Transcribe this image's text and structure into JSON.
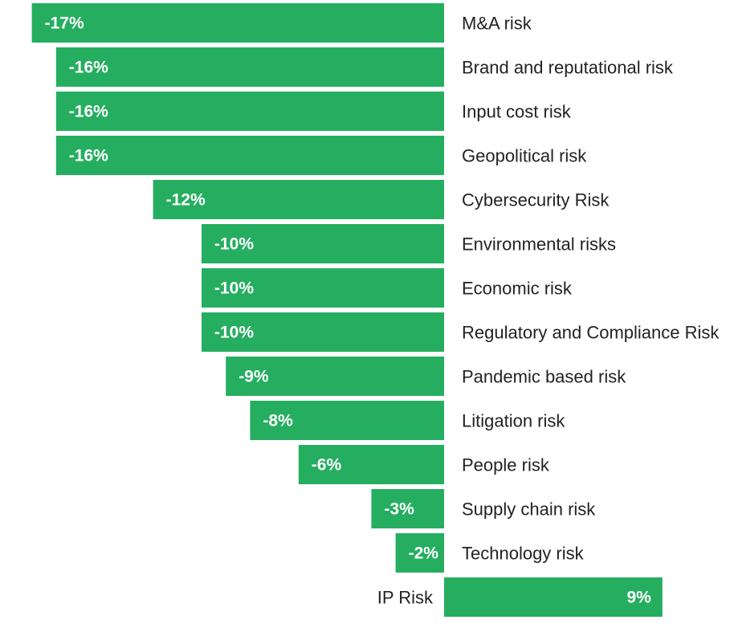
{
  "chart_data": {
    "type": "bar",
    "orientation": "horizontal",
    "title": "",
    "xlabel": "",
    "ylabel": "",
    "unit": "%",
    "categories": [
      "M&A risk",
      "Brand and reputational risk",
      "Input cost risk",
      "Geopolitical risk",
      "Cybersecurity Risk",
      "Environmental risks",
      "Economic risk",
      "Regulatory and Compliance Risk",
      "Pandemic based risk",
      "Litigation risk",
      "People risk",
      "Supply chain risk",
      "Technology risk",
      "IP Risk"
    ],
    "values": [
      -17,
      -16,
      -16,
      -16,
      -12,
      -10,
      -10,
      -10,
      -9,
      -8,
      -6,
      -3,
      -2,
      9
    ],
    "value_labels": [
      "-17%",
      "-16%",
      "-16%",
      "-16%",
      "-12%",
      "-10%",
      "-10%",
      "-10%",
      "-9%",
      "-8%",
      "-6%",
      "-3%",
      "-2%",
      "9%"
    ],
    "bar_color": "#26AE60",
    "grid": false,
    "legend": false
  }
}
